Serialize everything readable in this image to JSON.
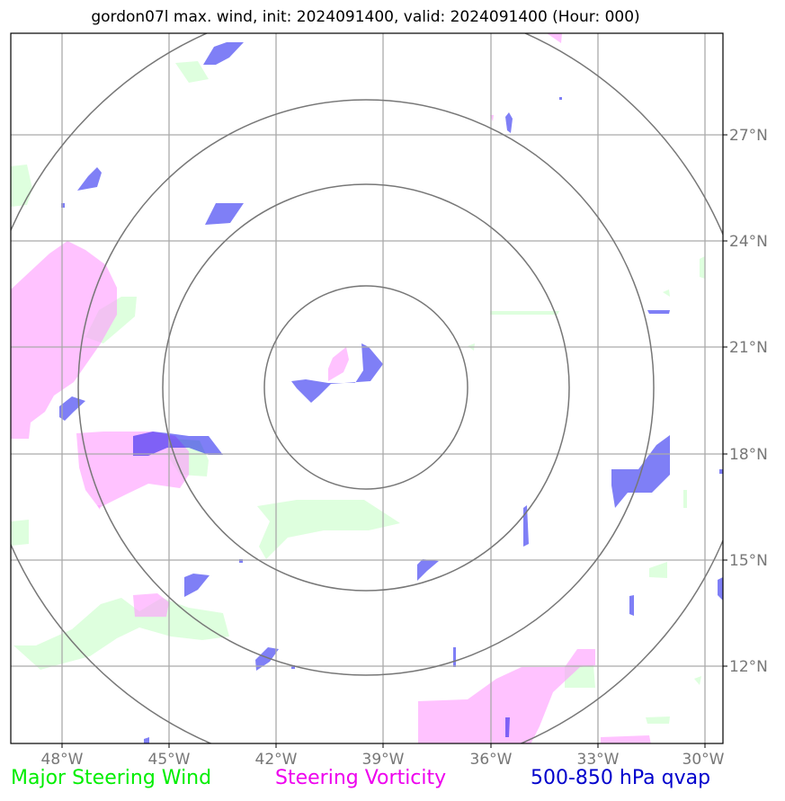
{
  "title": "gordon07l max. wind, init: 2024091400, valid: 2024091400 (Hour: 000)",
  "x_axis": {
    "ticks": [
      "48°W",
      "45°W",
      "42°W",
      "39°W",
      "36°W",
      "33°W",
      "30°W"
    ]
  },
  "y_axis": {
    "ticks": [
      "27°N",
      "24°N",
      "21°N",
      "18°N",
      "15°N",
      "12°N"
    ]
  },
  "legend": {
    "wind": "Major Steering Wind",
    "vorticity": "Steering Vorticity",
    "qvap": "500-850 hPa qvap"
  },
  "colors": {
    "wind": "#ccffcc",
    "vorticity": "#ff99ff",
    "qvap": "#0000ee",
    "grid": "#aaaaaa",
    "range_rings": "#777777"
  },
  "range_rings": {
    "count": 4
  }
}
